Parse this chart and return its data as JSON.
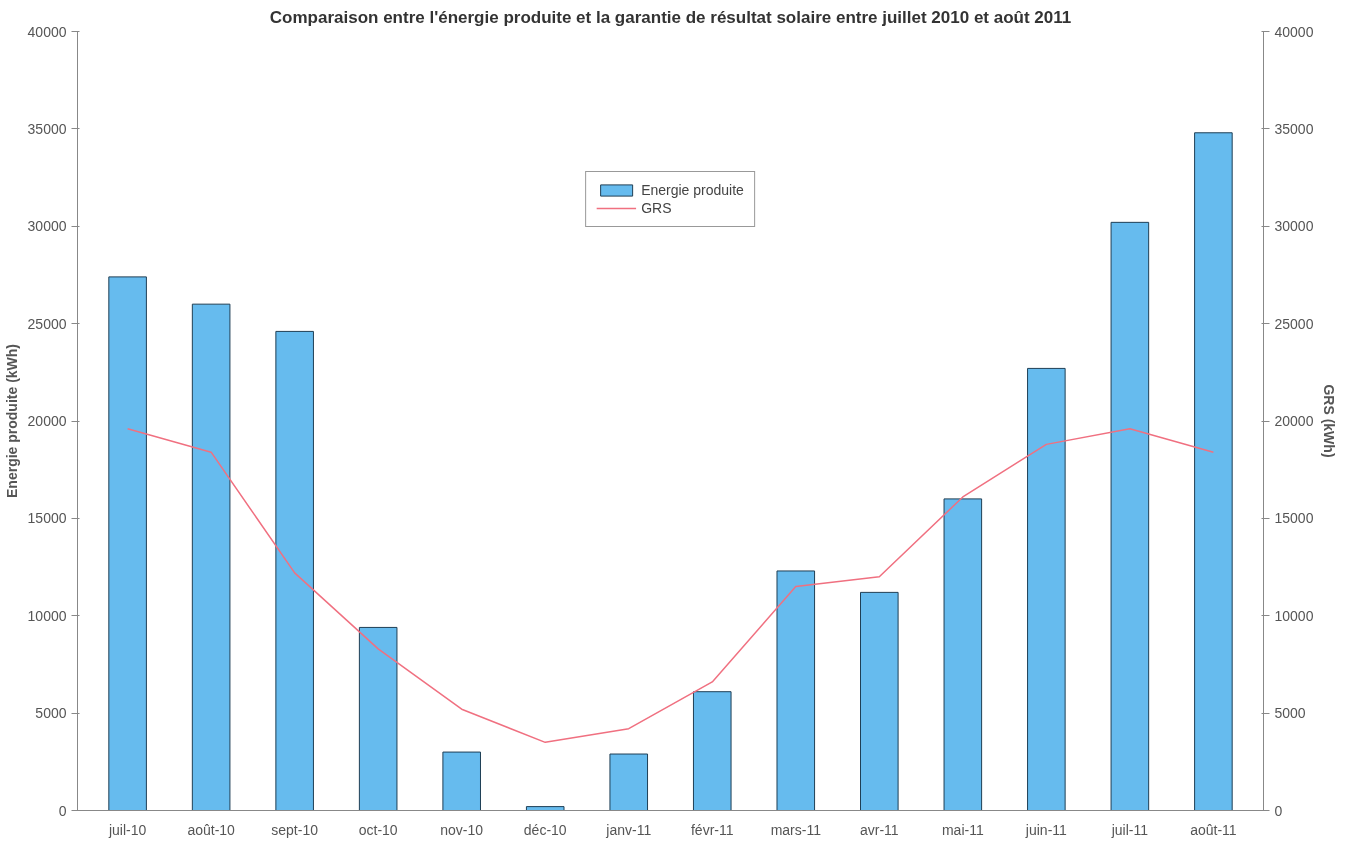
{
  "chart_data": {
    "type": "bar",
    "title": "Comparaison entre l'énergie produite et la garantie de résultat solaire entre juillet 2010 et août 2011",
    "ylabel": "Energie produite (kWh)",
    "y2label": "GRS (kWh)",
    "categories": [
      "juil-10",
      "août-10",
      "sept-10",
      "oct-10",
      "nov-10",
      "déc-10",
      "janv-11",
      "févr-11",
      "mars-11",
      "avr-11",
      "mai-11",
      "juin-11",
      "juil-11",
      "août-11"
    ],
    "series": [
      {
        "name": "Energie produite",
        "color": "#66bbee",
        "values": [
          27400,
          26000,
          24600,
          9400,
          3000,
          200,
          2900,
          6100,
          12300,
          11200,
          16000,
          22700,
          30200,
          34800
        ]
      },
      {
        "name": "GRS",
        "type": "line",
        "color": "#f07080",
        "values": [
          19600,
          18400,
          12200,
          8300,
          5200,
          3500,
          4200,
          6600,
          11500,
          12000,
          16100,
          18800,
          19600,
          18400
        ]
      }
    ],
    "ylim": [
      0,
      40000
    ],
    "yticks": [
      0,
      5000,
      10000,
      15000,
      20000,
      25000,
      30000,
      35000,
      40000
    ],
    "y2lim": [
      0,
      40000
    ],
    "y2ticks": [
      0,
      5000,
      10000,
      15000,
      20000,
      25000,
      30000,
      35000,
      40000
    ],
    "grid": false,
    "legend": "top",
    "marker": "none",
    "line_style": "solid"
  }
}
